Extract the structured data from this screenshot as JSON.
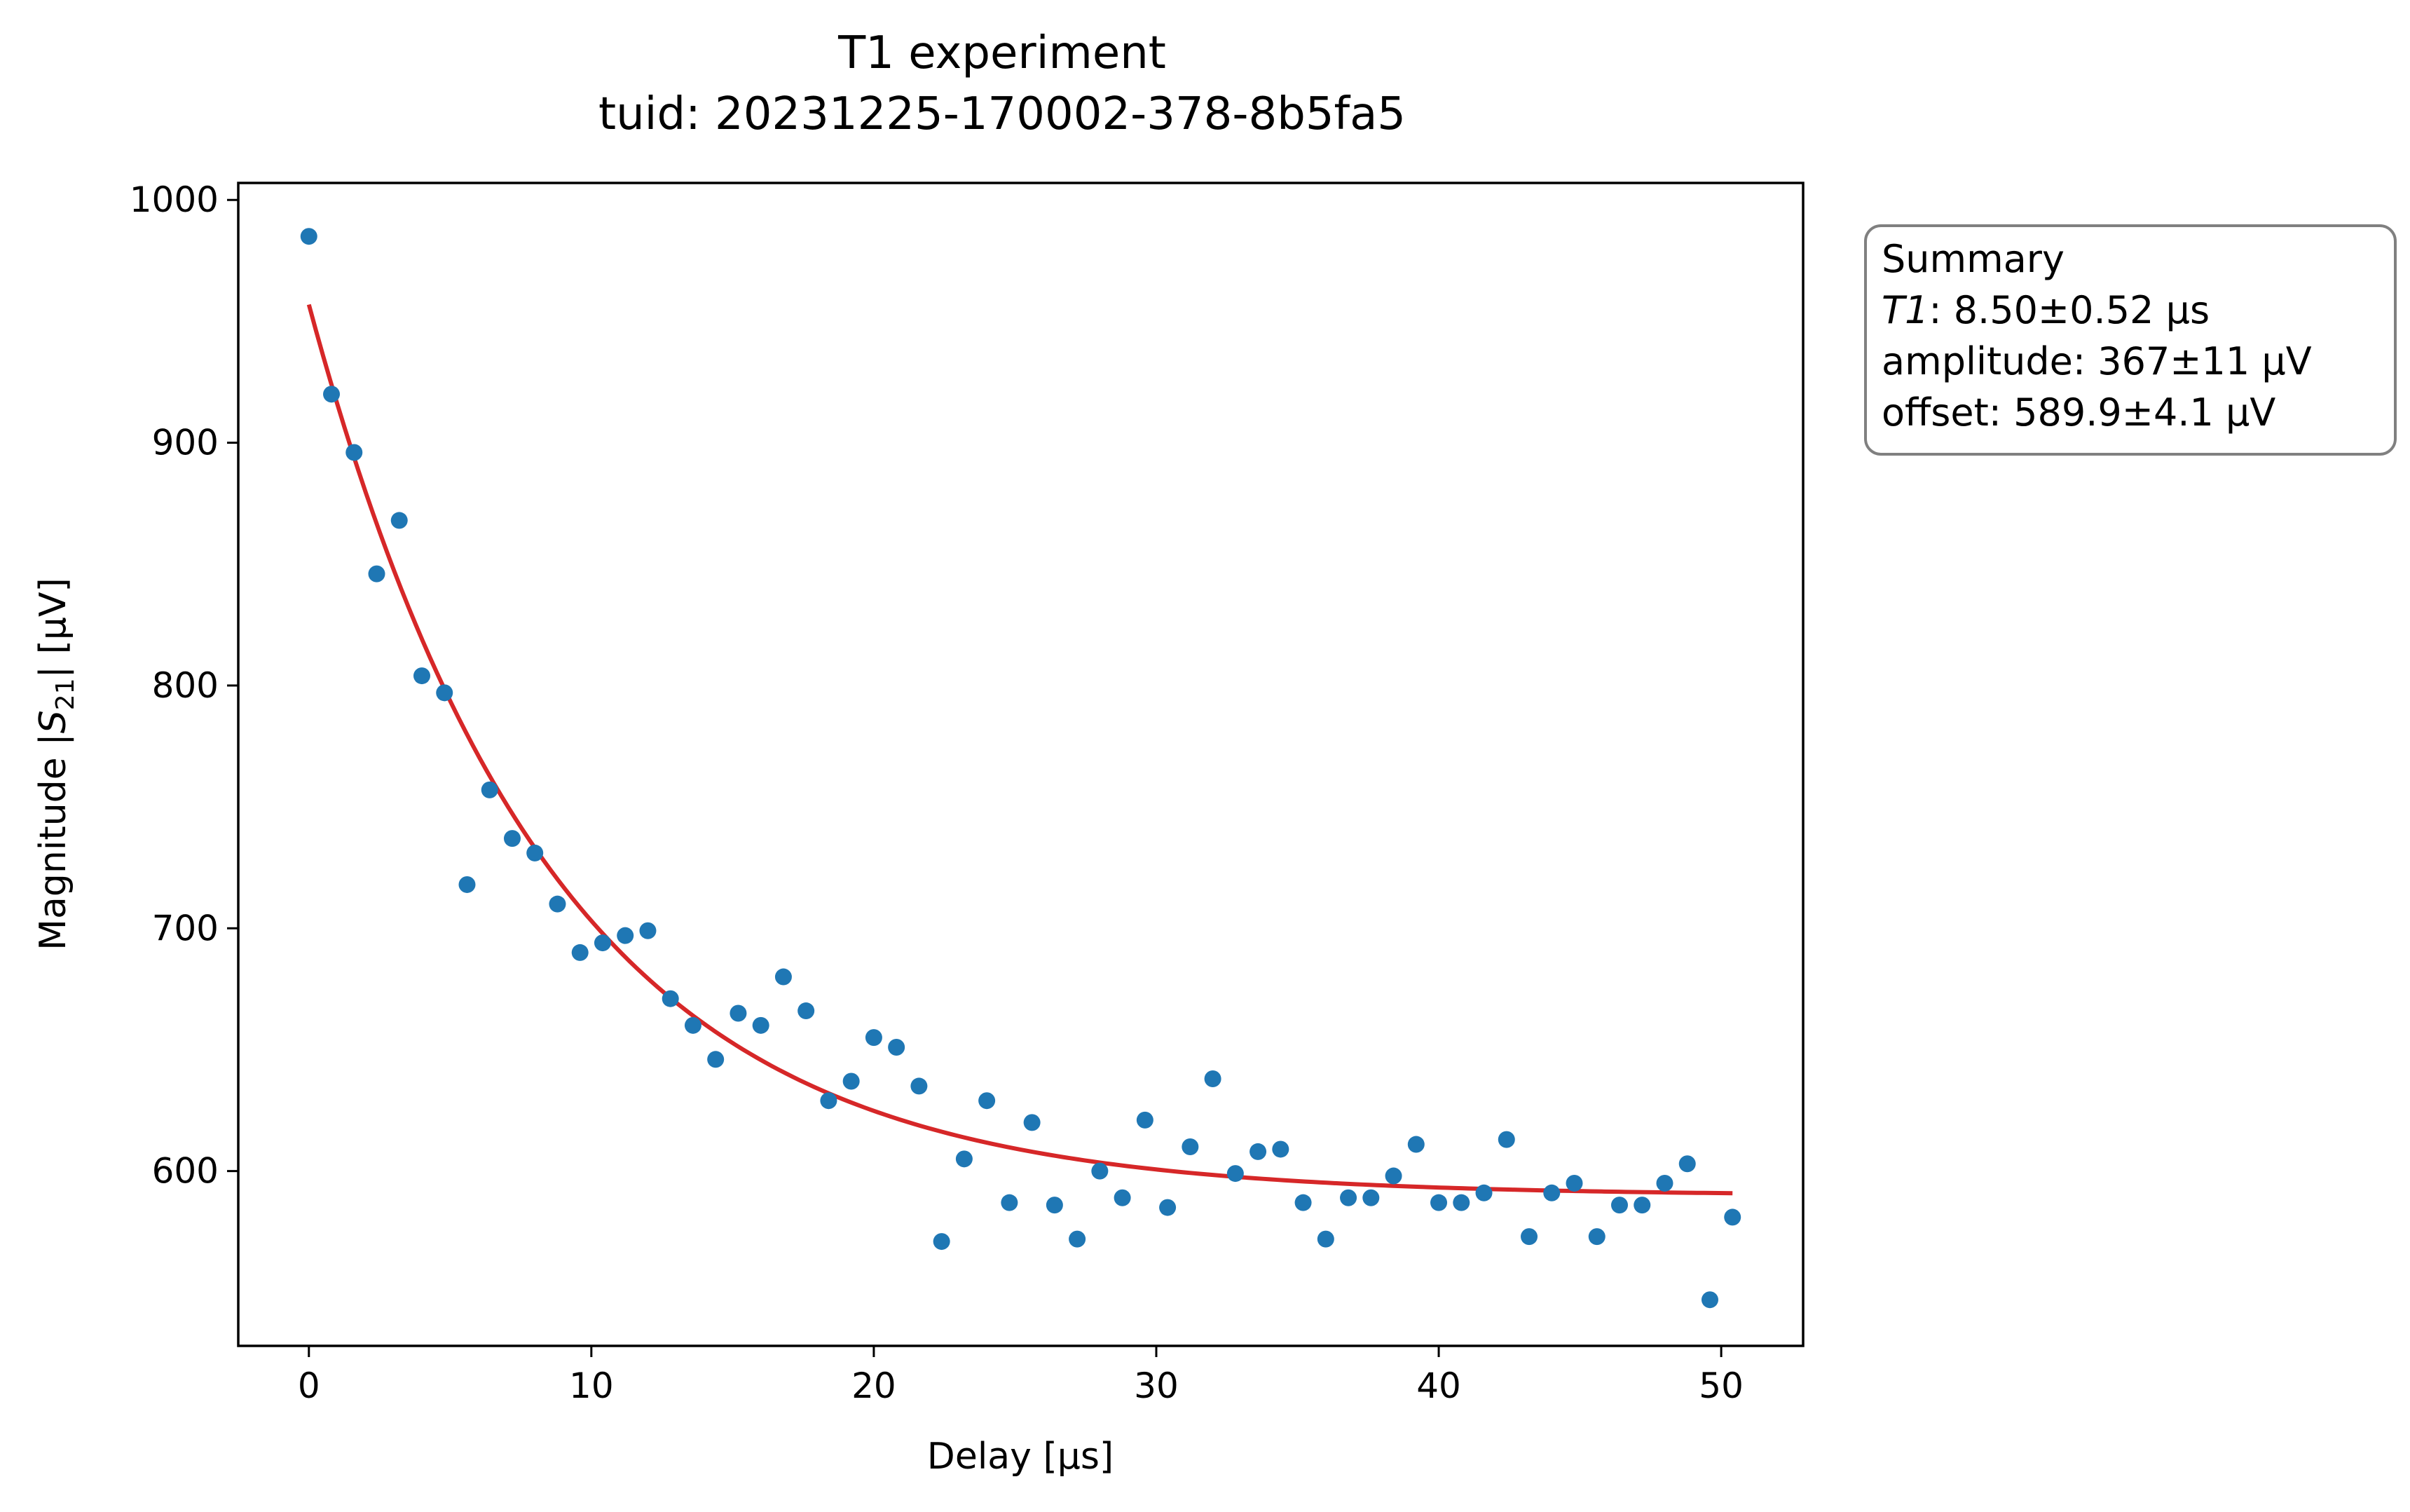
{
  "chart_data": {
    "type": "scatter",
    "title": "T1 experiment",
    "subtitle": "tuid: 20231225-170002-378-8b5fa5",
    "xlabel": "Delay [µs]",
    "ylabel": {
      "prefix": "Magnitude |",
      "var": "S",
      "sub": "21",
      "suffix": "| [µV]"
    },
    "xlim": [
      -2.5,
      52.9
    ],
    "ylim": [
      528,
      1007
    ],
    "xticks": [
      0,
      10,
      20,
      30,
      40,
      50
    ],
    "yticks": [
      600,
      700,
      800,
      900,
      1000
    ],
    "grid": false,
    "colors": {
      "points": "#1f77b4",
      "fit": "#d62728",
      "box_edge": "#808080"
    },
    "series": [
      {
        "kind": "points",
        "x": [
          0,
          0.8,
          1.6,
          2.4,
          3.2,
          4.0,
          4.8,
          5.6,
          6.4,
          7.2,
          8.0,
          8.8,
          9.6,
          10.4,
          11.2,
          12.0,
          12.8,
          13.6,
          14.4,
          15.2,
          16.0,
          16.8,
          17.6,
          18.4,
          19.2,
          20.0,
          20.8,
          21.6,
          22.4,
          23.2,
          24.0,
          24.8,
          25.6,
          26.4,
          27.2,
          28.0,
          28.8,
          29.6,
          30.4,
          31.2,
          32.0,
          32.8,
          33.6,
          34.4,
          35.2,
          36.0,
          36.8,
          37.6,
          38.4,
          39.2,
          40.0,
          40.8,
          41.6,
          42.4,
          43.2,
          44.0,
          44.8,
          45.6,
          46.4,
          47.2,
          48.0,
          48.8,
          49.6,
          50.4
        ],
        "y": [
          985,
          920,
          896,
          846,
          868,
          804,
          797,
          718,
          757,
          737,
          731,
          710,
          690,
          694,
          697,
          699,
          671,
          660,
          646,
          665,
          660,
          680,
          666,
          629,
          637,
          655,
          651,
          635,
          571,
          605,
          629,
          587,
          620,
          586,
          572,
          600,
          589,
          621,
          585,
          610,
          638,
          599,
          608,
          609,
          587,
          572,
          589,
          589,
          598,
          611,
          587,
          587,
          591,
          613,
          573,
          591,
          595,
          573,
          586,
          586,
          595,
          603,
          547,
          581
        ]
      },
      {
        "kind": "fit",
        "model": "exponential decay",
        "T1": 8.5,
        "amplitude": 367,
        "offset": 589.9,
        "x_range": [
          0,
          50.4
        ]
      }
    ],
    "summary": {
      "title": "Summary",
      "lines": [
        {
          "var": "T1",
          "text": ": 8.50±0.52 µs"
        },
        {
          "var": "",
          "text": "amplitude: 367±11 µV"
        },
        {
          "var": "",
          "text": "offset: 589.9±4.1 µV"
        }
      ]
    }
  }
}
